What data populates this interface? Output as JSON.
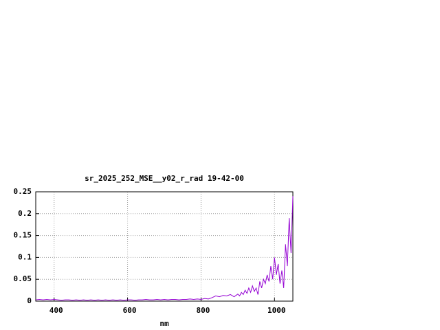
{
  "chart_data": {
    "type": "line",
    "title": "sr_2025_252_MSE__y02_r_rad 19-42-00",
    "xlabel": "nm",
    "x": [
      350,
      360,
      370,
      380,
      390,
      400,
      410,
      420,
      430,
      440,
      450,
      460,
      470,
      480,
      490,
      500,
      510,
      520,
      530,
      540,
      550,
      560,
      570,
      580,
      590,
      600,
      610,
      620,
      630,
      640,
      650,
      660,
      670,
      680,
      690,
      700,
      710,
      720,
      730,
      740,
      750,
      760,
      770,
      780,
      790,
      800,
      810,
      820,
      830,
      840,
      850,
      860,
      870,
      880,
      890,
      900,
      905,
      910,
      915,
      920,
      925,
      930,
      935,
      940,
      945,
      950,
      955,
      960,
      965,
      970,
      975,
      980,
      985,
      990,
      995,
      1000,
      1005,
      1010,
      1015,
      1020,
      1025,
      1030,
      1035,
      1040,
      1045,
      1050
    ],
    "values": [
      0.003,
      0.004,
      0.003,
      0.004,
      0.003,
      0.004,
      0.003,
      0.002,
      0.003,
      0.003,
      0.002,
      0.003,
      0.002,
      0.003,
      0.002,
      0.003,
      0.002,
      0.003,
      0.002,
      0.003,
      0.002,
      0.003,
      0.002,
      0.003,
      0.002,
      0.003,
      0.003,
      0.002,
      0.003,
      0.003,
      0.004,
      0.003,
      0.003,
      0.004,
      0.003,
      0.004,
      0.003,
      0.004,
      0.004,
      0.003,
      0.004,
      0.004,
      0.005,
      0.004,
      0.005,
      0.004,
      0.006,
      0.005,
      0.008,
      0.012,
      0.01,
      0.013,
      0.012,
      0.015,
      0.01,
      0.016,
      0.012,
      0.02,
      0.015,
      0.025,
      0.018,
      0.03,
      0.02,
      0.035,
      0.022,
      0.03,
      0.015,
      0.045,
      0.03,
      0.05,
      0.04,
      0.06,
      0.045,
      0.08,
      0.05,
      0.1,
      0.06,
      0.085,
      0.04,
      0.07,
      0.03,
      0.13,
      0.08,
      0.19,
      0.11,
      0.24
    ],
    "color": "#9400d3",
    "xlim": [
      350,
      1050
    ],
    "xticks": [
      400,
      600,
      800,
      1000
    ],
    "ylim": [
      0,
      0.25
    ],
    "yticks": [
      0,
      0.05,
      0.1,
      0.15,
      0.2,
      0.25
    ],
    "grid": true
  }
}
